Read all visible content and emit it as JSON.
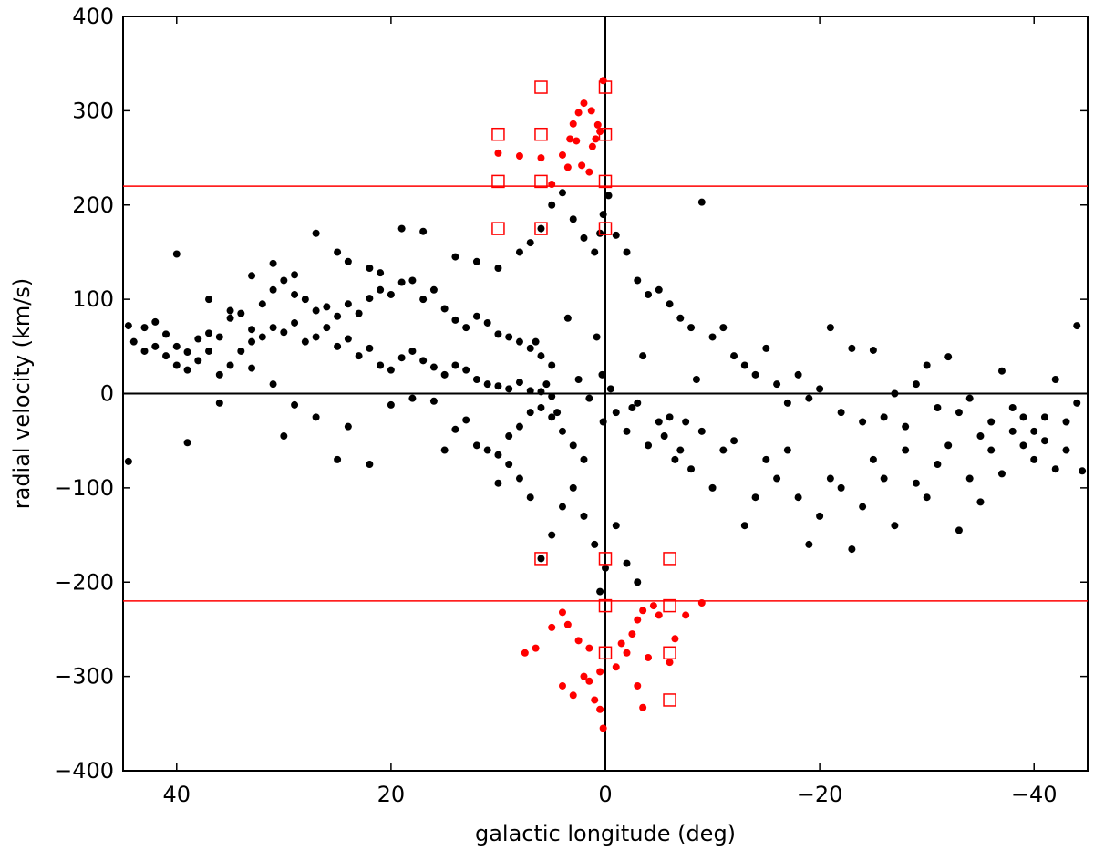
{
  "chart_data": {
    "type": "scatter",
    "xlabel": "galactic longitude (deg)",
    "ylabel": "radial velocity (km/s)",
    "xlim": [
      45,
      -45
    ],
    "ylim": [
      -400,
      400
    ],
    "x_ticks": [
      40,
      20,
      0,
      -20,
      -40
    ],
    "y_ticks": [
      400,
      300,
      200,
      100,
      0,
      -100,
      -200,
      -300,
      -400
    ],
    "x_tick_labels": [
      "40",
      "20",
      "0",
      "−20",
      "−40"
    ],
    "y_tick_labels": [
      "400",
      "300",
      "200",
      "100",
      "0",
      "−100",
      "−200",
      "−300",
      "−400"
    ],
    "grid": false,
    "reference_lines": {
      "horizontal_red": [
        220,
        -220
      ],
      "zero_lines_black": {
        "x": 0,
        "y": 0
      }
    },
    "colors": {
      "background_points": "#000000",
      "high_velocity_points": "#ff0000",
      "squares": "#ff0000",
      "reference_lines": "#ff0000",
      "zero_lines": "#000000"
    },
    "series": [
      {
        "marker": "circle",
        "color": "#000000",
        "points": [
          [
            44.5,
            72
          ],
          [
            43,
            70
          ],
          [
            42,
            76
          ],
          [
            41,
            63
          ],
          [
            40,
            50
          ],
          [
            39,
            44
          ],
          [
            38,
            58
          ],
          [
            37,
            64
          ],
          [
            36,
            60
          ],
          [
            35,
            80
          ],
          [
            34,
            85
          ],
          [
            33,
            68
          ],
          [
            32,
            95
          ],
          [
            31,
            110
          ],
          [
            30,
            120
          ],
          [
            29,
            105
          ],
          [
            28,
            100
          ],
          [
            27,
            88
          ],
          [
            26,
            92
          ],
          [
            25,
            82
          ],
          [
            24,
            95
          ],
          [
            23,
            85
          ],
          [
            22,
            101
          ],
          [
            21,
            110
          ],
          [
            20,
            105
          ],
          [
            19,
            118
          ],
          [
            18,
            120
          ],
          [
            17,
            100
          ],
          [
            16,
            110
          ],
          [
            15,
            90
          ],
          [
            14,
            78
          ],
          [
            13,
            70
          ],
          [
            12,
            82
          ],
          [
            11,
            75
          ],
          [
            10,
            63
          ],
          [
            9,
            60
          ],
          [
            8,
            55
          ],
          [
            7,
            48
          ],
          [
            6,
            40
          ],
          [
            5,
            30
          ],
          [
            44,
            55
          ],
          [
            43,
            45
          ],
          [
            42,
            50
          ],
          [
            41,
            40
          ],
          [
            40,
            30
          ],
          [
            39,
            25
          ],
          [
            38,
            35
          ],
          [
            37,
            45
          ],
          [
            36,
            20
          ],
          [
            35,
            30
          ],
          [
            34,
            45
          ],
          [
            33,
            55
          ],
          [
            32,
            60
          ],
          [
            31,
            70
          ],
          [
            30,
            65
          ],
          [
            29,
            75
          ],
          [
            28,
            55
          ],
          [
            27,
            60
          ],
          [
            26,
            70
          ],
          [
            25,
            50
          ],
          [
            24,
            58
          ],
          [
            23,
            40
          ],
          [
            22,
            48
          ],
          [
            21,
            30
          ],
          [
            20,
            25
          ],
          [
            19,
            38
          ],
          [
            18,
            45
          ],
          [
            17,
            35
          ],
          [
            16,
            28
          ],
          [
            15,
            20
          ],
          [
            14,
            30
          ],
          [
            13,
            25
          ],
          [
            12,
            15
          ],
          [
            11,
            10
          ],
          [
            10,
            8
          ],
          [
            9,
            5
          ],
          [
            8,
            12
          ],
          [
            7,
            3
          ],
          [
            6,
            2
          ],
          [
            5,
            -3
          ],
          [
            44.5,
            -72
          ],
          [
            39,
            -52
          ],
          [
            36,
            -10
          ],
          [
            33,
            27
          ],
          [
            31,
            10
          ],
          [
            30,
            -45
          ],
          [
            29,
            -12
          ],
          [
            27,
            -25
          ],
          [
            25,
            -70
          ],
          [
            24,
            -35
          ],
          [
            22,
            -75
          ],
          [
            20,
            -12
          ],
          [
            18,
            -5
          ],
          [
            16,
            -8
          ],
          [
            15,
            -60
          ],
          [
            14,
            -38
          ],
          [
            13,
            -28
          ],
          [
            12,
            -55
          ],
          [
            11,
            -60
          ],
          [
            10,
            -95
          ],
          [
            9,
            -45
          ],
          [
            8,
            -35
          ],
          [
            7,
            -20
          ],
          [
            6,
            -15
          ],
          [
            5,
            -25
          ],
          [
            4,
            -40
          ],
          [
            3,
            -55
          ],
          [
            2,
            -70
          ],
          [
            40,
            148
          ],
          [
            37,
            100
          ],
          [
            35,
            88
          ],
          [
            33,
            125
          ],
          [
            31,
            138
          ],
          [
            29,
            126
          ],
          [
            27,
            170
          ],
          [
            25,
            150
          ],
          [
            24,
            140
          ],
          [
            22,
            133
          ],
          [
            21,
            128
          ],
          [
            19,
            175
          ],
          [
            17,
            172
          ],
          [
            14,
            145
          ],
          [
            12,
            140
          ],
          [
            10,
            133
          ],
          [
            8,
            150
          ],
          [
            7,
            160
          ],
          [
            6,
            175
          ],
          [
            5,
            200
          ],
          [
            4,
            213
          ],
          [
            3,
            185
          ],
          [
            2,
            165
          ],
          [
            1,
            150
          ],
          [
            0.5,
            170
          ],
          [
            0.2,
            190
          ],
          [
            -0.3,
            210
          ],
          [
            -1,
            168
          ],
          [
            -2,
            150
          ],
          [
            -3,
            120
          ],
          [
            -4,
            105
          ],
          [
            -5,
            110
          ],
          [
            -6,
            95
          ],
          [
            -7,
            80
          ],
          [
            -8,
            70
          ],
          [
            -9,
            203
          ],
          [
            -10,
            60
          ],
          [
            -11,
            70
          ],
          [
            -12,
            40
          ],
          [
            -13,
            30
          ],
          [
            -14,
            20
          ],
          [
            -15,
            48
          ],
          [
            -16,
            10
          ],
          [
            -17,
            -10
          ],
          [
            -18,
            20
          ],
          [
            -19,
            -5
          ],
          [
            -20,
            5
          ],
          [
            -21,
            70
          ],
          [
            -22,
            -20
          ],
          [
            -23,
            48
          ],
          [
            -24,
            -30
          ],
          [
            -25,
            46
          ],
          [
            -26,
            -25
          ],
          [
            -27,
            0
          ],
          [
            -28,
            -35
          ],
          [
            -29,
            10
          ],
          [
            -30,
            30
          ],
          [
            -31,
            -15
          ],
          [
            -32,
            39
          ],
          [
            -33,
            -20
          ],
          [
            -34,
            -5
          ],
          [
            -35,
            -45
          ],
          [
            -36,
            -30
          ],
          [
            -37,
            24
          ],
          [
            -38,
            -15
          ],
          [
            -39,
            -25
          ],
          [
            -40,
            -40
          ],
          [
            -41,
            -25
          ],
          [
            -42,
            15
          ],
          [
            -43,
            -60
          ],
          [
            -44,
            72
          ],
          [
            -44.5,
            -82
          ],
          [
            -1,
            -20
          ],
          [
            -2,
            -40
          ],
          [
            -3,
            -10
          ],
          [
            -4,
            -55
          ],
          [
            -5,
            -30
          ],
          [
            -6,
            -25
          ],
          [
            -7,
            -60
          ],
          [
            -8,
            -80
          ],
          [
            -9,
            -40
          ],
          [
            -10,
            -100
          ],
          [
            -11,
            -60
          ],
          [
            -12,
            -50
          ],
          [
            -13,
            -140
          ],
          [
            -14,
            -110
          ],
          [
            -15,
            -70
          ],
          [
            -16,
            -90
          ],
          [
            -17,
            -60
          ],
          [
            -18,
            -110
          ],
          [
            -19,
            -160
          ],
          [
            -20,
            -130
          ],
          [
            -21,
            -90
          ],
          [
            -22,
            -100
          ],
          [
            -23,
            -165
          ],
          [
            -24,
            -120
          ],
          [
            -25,
            -70
          ],
          [
            -26,
            -90
          ],
          [
            -27,
            -140
          ],
          [
            -28,
            -60
          ],
          [
            -29,
            -95
          ],
          [
            -30,
            -110
          ],
          [
            -31,
            -75
          ],
          [
            -32,
            -55
          ],
          [
            -33,
            -145
          ],
          [
            -34,
            -90
          ],
          [
            -35,
            -115
          ],
          [
            -36,
            -60
          ],
          [
            -37,
            -85
          ],
          [
            -38,
            -40
          ],
          [
            -39,
            -55
          ],
          [
            -40,
            -70
          ],
          [
            -41,
            -50
          ],
          [
            -42,
            -80
          ],
          [
            -43,
            -30
          ],
          [
            -44,
            -10
          ],
          [
            3,
            -100
          ],
          [
            2,
            -130
          ],
          [
            1,
            -160
          ],
          [
            0.5,
            -210
          ],
          [
            0,
            -185
          ],
          [
            -1,
            -140
          ],
          [
            -2,
            -180
          ],
          [
            -3,
            -200
          ],
          [
            4,
            -120
          ],
          [
            5,
            -150
          ],
          [
            6,
            -175
          ],
          [
            7,
            -110
          ],
          [
            8,
            -90
          ],
          [
            9,
            -75
          ],
          [
            10,
            -65
          ],
          [
            0.3,
            20
          ],
          [
            0.2,
            -30
          ],
          [
            -0.5,
            5
          ],
          [
            0.8,
            60
          ],
          [
            1.5,
            -5
          ],
          [
            2.5,
            15
          ],
          [
            -2.5,
            -15
          ],
          [
            -3.5,
            40
          ],
          [
            3.5,
            80
          ],
          [
            4.5,
            -20
          ],
          [
            5.5,
            10
          ],
          [
            6.5,
            55
          ],
          [
            -5.5,
            -45
          ],
          [
            -6.5,
            -70
          ],
          [
            -7.5,
            -30
          ],
          [
            -8.5,
            15
          ]
        ]
      },
      {
        "marker": "circle",
        "color": "#ff0000",
        "points": [
          [
            0.2,
            332
          ],
          [
            1.3,
            300
          ],
          [
            2,
            308
          ],
          [
            2.5,
            298
          ],
          [
            3,
            286
          ],
          [
            0.7,
            285
          ],
          [
            1.2,
            262
          ],
          [
            0.5,
            278
          ],
          [
            2.7,
            268
          ],
          [
            3.3,
            270
          ],
          [
            0.9,
            270
          ],
          [
            4,
            253
          ],
          [
            6,
            250
          ],
          [
            8,
            252
          ],
          [
            10,
            255
          ],
          [
            3.5,
            240
          ],
          [
            2.2,
            242
          ],
          [
            1.5,
            235
          ],
          [
            5,
            222
          ],
          [
            0.2,
            -355
          ],
          [
            0.5,
            -335
          ],
          [
            1,
            -325
          ],
          [
            1.5,
            -305
          ],
          [
            2,
            -300
          ],
          [
            3,
            -320
          ],
          [
            4,
            -310
          ],
          [
            -3,
            -310
          ],
          [
            -3.5,
            -333
          ],
          [
            -1,
            -290
          ],
          [
            -2,
            -275
          ],
          [
            -4,
            -280
          ],
          [
            -6,
            -285
          ],
          [
            -6.5,
            -260
          ],
          [
            -7.5,
            -235
          ],
          [
            -9,
            -222
          ],
          [
            -1.5,
            -265
          ],
          [
            -2.5,
            -255
          ],
          [
            -3,
            -240
          ],
          [
            -3.5,
            -230
          ],
          [
            -4.5,
            -225
          ],
          [
            -5,
            -235
          ],
          [
            0.5,
            -295
          ],
          [
            1.5,
            -270
          ],
          [
            2.5,
            -262
          ],
          [
            3.5,
            -245
          ],
          [
            4,
            -232
          ],
          [
            5,
            -248
          ],
          [
            6.5,
            -270
          ],
          [
            7.5,
            -275
          ]
        ]
      },
      {
        "marker": "square",
        "color": "#ff0000",
        "points": [
          [
            6,
            325
          ],
          [
            0,
            325
          ],
          [
            10,
            275
          ],
          [
            6,
            275
          ],
          [
            0,
            275
          ],
          [
            10,
            225
          ],
          [
            6,
            225
          ],
          [
            0,
            225
          ],
          [
            10,
            175
          ],
          [
            6,
            175
          ],
          [
            0,
            175
          ],
          [
            6,
            -175
          ],
          [
            0,
            -175
          ],
          [
            -6,
            -175
          ],
          [
            0,
            -225
          ],
          [
            -6,
            -225
          ],
          [
            0,
            -275
          ],
          [
            -6,
            -275
          ],
          [
            -6,
            -325
          ]
        ]
      }
    ]
  }
}
